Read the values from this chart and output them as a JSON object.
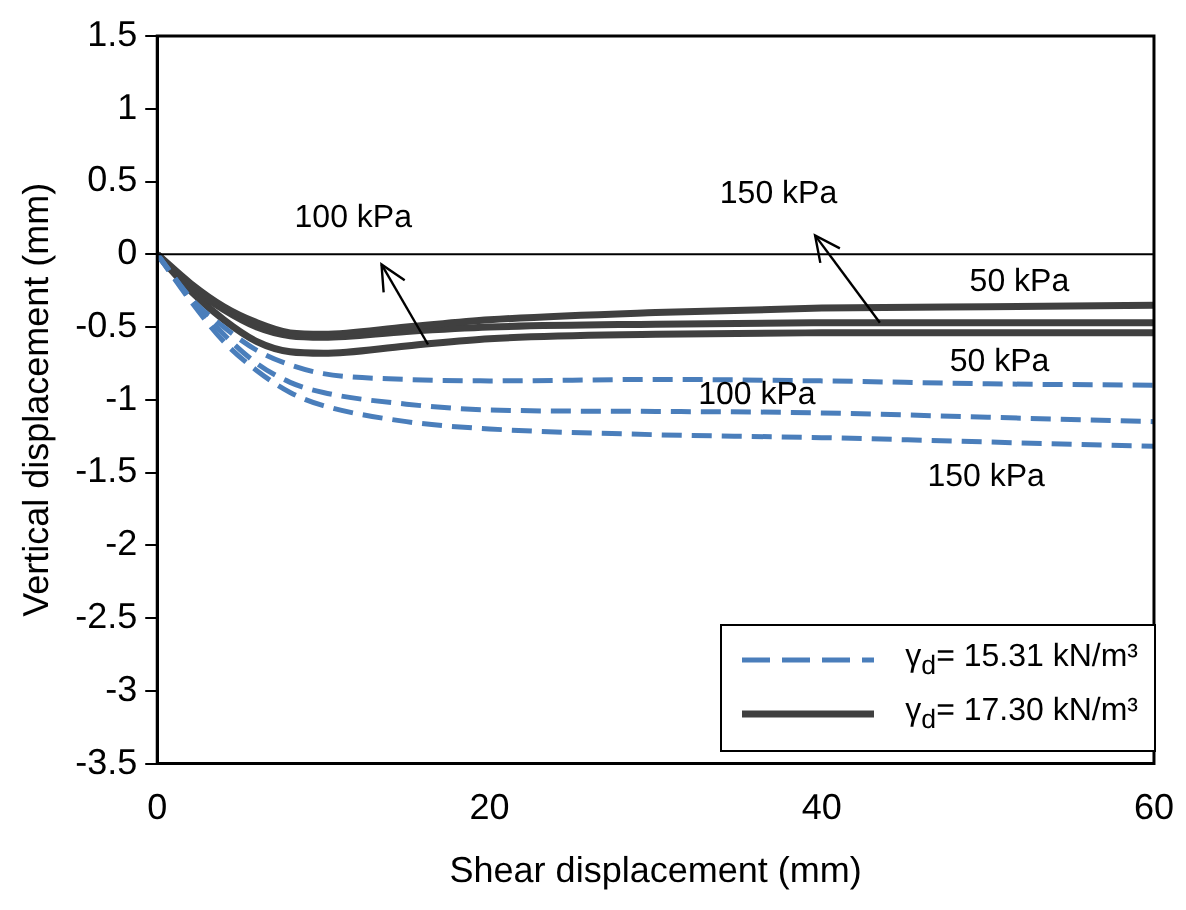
{
  "chart_data": {
    "type": "line",
    "xlabel": "Shear displacement (mm)",
    "ylabel": "Vertical displacement (mm)",
    "x": [
      0,
      2,
      4,
      6,
      8,
      10,
      15,
      20,
      30,
      40,
      50,
      60
    ],
    "series": [
      {
        "name": "γ$_{d}$= 15.31 kN/m³",
        "color": "#4a7ebb",
        "line_style": "dashed",
        "values": [
          0,
          -0.3,
          -0.5,
          -0.66,
          -0.76,
          -0.82,
          -0.86,
          -0.87,
          -0.86,
          -0.87,
          -0.89,
          -0.9
        ]
      },
      {
        "color": "#4a7ebb",
        "line_style": "dashed",
        "values": [
          0,
          -0.3,
          -0.55,
          -0.75,
          -0.88,
          -0.95,
          -1.03,
          -1.07,
          -1.08,
          -1.09,
          -1.12,
          -1.15
        ]
      },
      {
        "color": "#4a7ebb",
        "line_style": "dashed",
        "values": [
          0,
          -0.32,
          -0.6,
          -0.8,
          -0.95,
          -1.04,
          -1.15,
          -1.2,
          -1.24,
          -1.26,
          -1.29,
          -1.32
        ]
      },
      {
        "name": "γ$_{d}$= 17.30 kN/m³",
        "color": "#404040",
        "line_style": "solid",
        "values": [
          0,
          -0.2,
          -0.36,
          -0.47,
          -0.54,
          -0.55,
          -0.5,
          -0.45,
          -0.4,
          -0.37,
          -0.36,
          -0.35
        ]
      },
      {
        "color": "#404040",
        "line_style": "solid",
        "values": [
          0,
          -0.22,
          -0.38,
          -0.5,
          -0.56,
          -0.57,
          -0.53,
          -0.5,
          -0.48,
          -0.47,
          -0.47,
          -0.47
        ]
      },
      {
        "color": "#404040",
        "line_style": "solid",
        "values": [
          0,
          -0.25,
          -0.45,
          -0.6,
          -0.67,
          -0.68,
          -0.63,
          -0.58,
          -0.55,
          -0.54,
          -0.54,
          -0.54
        ]
      }
    ],
    "annotations": [
      {
        "text": "100 kPa",
        "x": 16.3,
        "y": -0.62
      },
      {
        "text": "150 kPa",
        "x": 43.5,
        "y": -0.47
      },
      "50 kPa",
      "50 kPa",
      "100 kPa",
      "150 kPa"
    ],
    "ref_lines": [
      {
        "axis": "y",
        "value": 0,
        "color": "#000000"
      }
    ],
    "xlim": [
      0,
      60
    ],
    "xticks": [
      0,
      20,
      40,
      60
    ],
    "ylim": [
      -3.5,
      1.5
    ],
    "yticks": [
      -3.5,
      -3,
      -2.5,
      -2,
      -1.5,
      -1,
      -0.5,
      0,
      0.5,
      1,
      1.5
    ],
    "grid": false,
    "legend": "bottom right",
    "marker": "none"
  }
}
